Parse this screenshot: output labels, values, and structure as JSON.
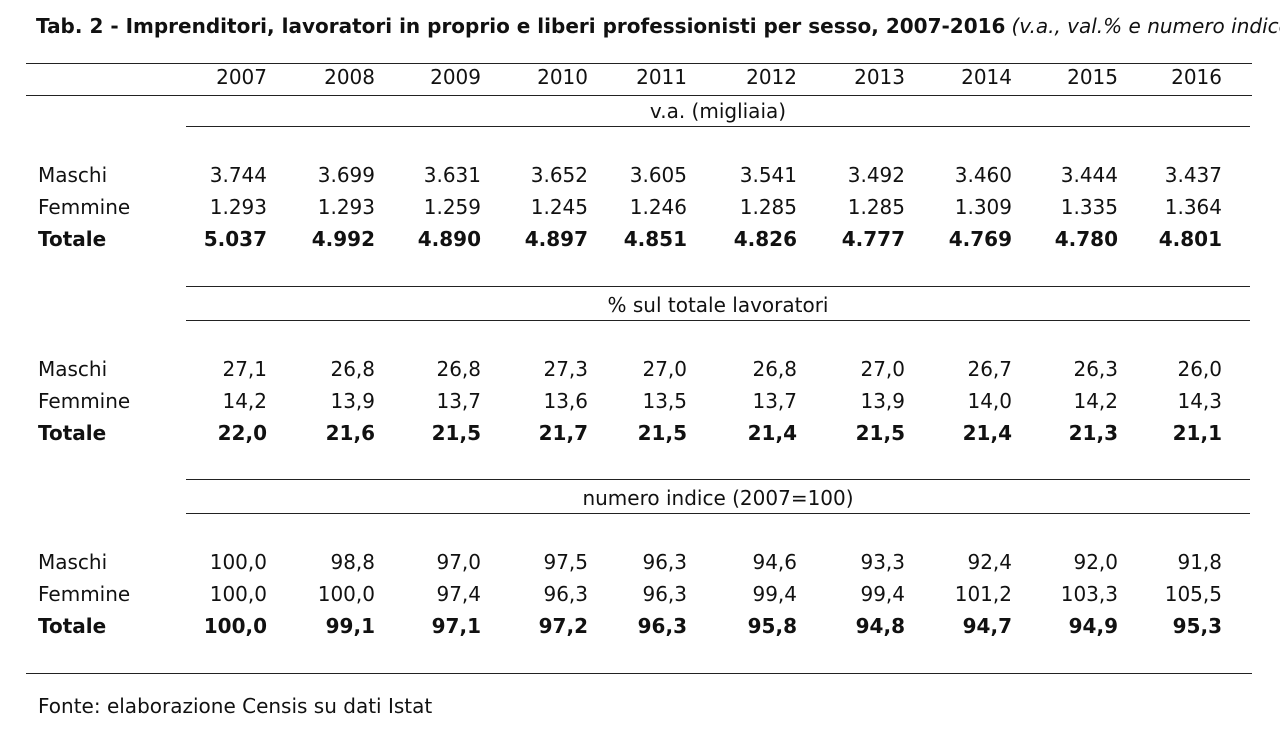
{
  "title": {
    "main": "Tab. 2 - Imprenditori, lavoratori in proprio e liberi professionisti per sesso, 2007-2016",
    "sub": "(v.a., val.% e numero indice)"
  },
  "source": "Fonte: elaborazione Censis su dati Istat",
  "chart_data": {
    "type": "table",
    "columns": [
      "2007",
      "2008",
      "2009",
      "2010",
      "2011",
      "2012",
      "2013",
      "2014",
      "2015",
      "2016"
    ],
    "sections": [
      {
        "header": "v.a. (migliaia)",
        "rows": [
          {
            "label": "Maschi",
            "bold": false,
            "values": [
              "3.744",
              "3.699",
              "3.631",
              "3.652",
              "3.605",
              "3.541",
              "3.492",
              "3.460",
              "3.444",
              "3.437"
            ]
          },
          {
            "label": "Femmine",
            "bold": false,
            "values": [
              "1.293",
              "1.293",
              "1.259",
              "1.245",
              "1.246",
              "1.285",
              "1.285",
              "1.309",
              "1.335",
              "1.364"
            ]
          },
          {
            "label": "Totale",
            "bold": true,
            "values": [
              "5.037",
              "4.992",
              "4.890",
              "4.897",
              "4.851",
              "4.826",
              "4.777",
              "4.769",
              "4.780",
              "4.801"
            ]
          }
        ]
      },
      {
        "header": "% sul totale lavoratori",
        "rows": [
          {
            "label": "Maschi",
            "bold": false,
            "values": [
              "27,1",
              "26,8",
              "26,8",
              "27,3",
              "27,0",
              "26,8",
              "27,0",
              "26,7",
              "26,3",
              "26,0"
            ]
          },
          {
            "label": "Femmine",
            "bold": false,
            "values": [
              "14,2",
              "13,9",
              "13,7",
              "13,6",
              "13,5",
              "13,7",
              "13,9",
              "14,0",
              "14,2",
              "14,3"
            ]
          },
          {
            "label": "Totale",
            "bold": true,
            "values": [
              "22,0",
              "21,6",
              "21,5",
              "21,7",
              "21,5",
              "21,4",
              "21,5",
              "21,4",
              "21,3",
              "21,1"
            ]
          }
        ]
      },
      {
        "header": "numero indice (2007=100)",
        "rows": [
          {
            "label": "Maschi",
            "bold": false,
            "values": [
              "100,0",
              "98,8",
              "97,0",
              "97,5",
              "96,3",
              "94,6",
              "93,3",
              "92,4",
              "92,0",
              "91,8"
            ]
          },
          {
            "label": "Femmine",
            "bold": false,
            "values": [
              "100,0",
              "100,0",
              "97,4",
              "96,3",
              "96,3",
              "99,4",
              "99,4",
              "101,2",
              "103,3",
              "105,5"
            ]
          },
          {
            "label": "Totale",
            "bold": true,
            "values": [
              "100,0",
              "99,1",
              "97,1",
              "97,2",
              "96,3",
              "95,8",
              "94,8",
              "94,7",
              "94,9",
              "95,3"
            ]
          }
        ]
      }
    ]
  }
}
